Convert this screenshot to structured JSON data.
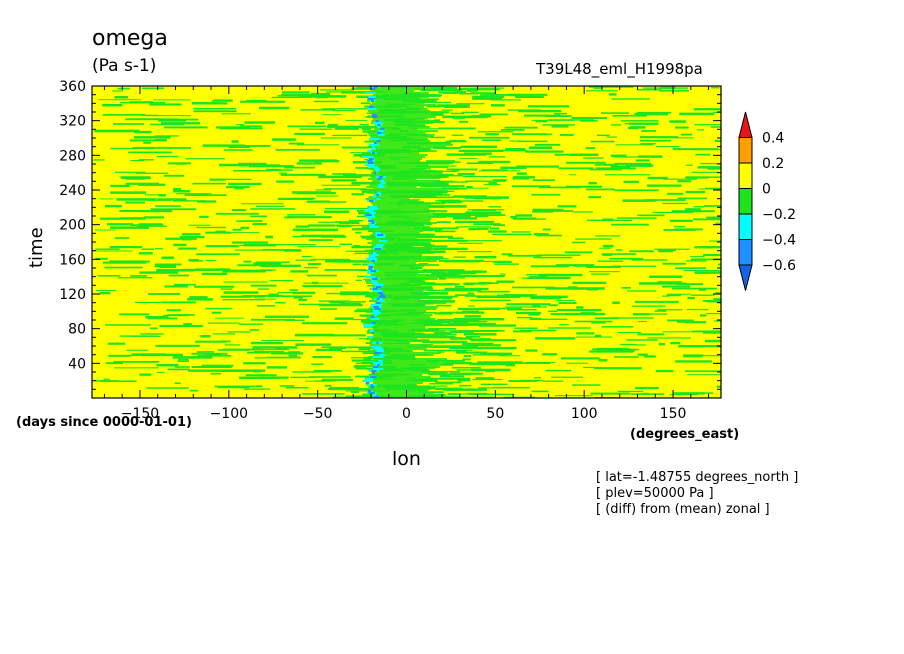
{
  "header": {
    "title": "omega",
    "units": "(Pa s-1)",
    "run_label": "T39L48_eml_H1998pa"
  },
  "notes": {
    "x_units": "(degrees_east)",
    "y_units": "(days since 0000-01-01)",
    "lines": [
      "[ lat=-1.48755 degrees_north ]",
      "[ plev=50000 Pa ]",
      "[ (diff) from (mean) zonal ]"
    ]
  },
  "chart_data": {
    "type": "heatmap",
    "title": "omega",
    "units": "(Pa s-1)",
    "xlabel": "lon",
    "ylabel": "time",
    "xlim": [
      -177,
      177
    ],
    "ylim": [
      0,
      360
    ],
    "x_ticks": [
      -150,
      -100,
      -50,
      0,
      50,
      100,
      150
    ],
    "y_ticks": [
      40,
      80,
      120,
      160,
      200,
      240,
      280,
      320,
      360
    ],
    "x_tick_labels": [
      "−150",
      "−100",
      "−50",
      "0",
      "50",
      "100",
      "150"
    ],
    "y_tick_labels": [
      "40",
      "80",
      "120",
      "160",
      "200",
      "240",
      "280",
      "320",
      "360"
    ],
    "colorbar": {
      "labels": [
        "0.4",
        "0.2",
        "0",
        "−0.2",
        "−0.4",
        "−0.6"
      ],
      "levels": [
        0.4,
        0.2,
        0,
        -0.2,
        -0.4,
        -0.6
      ],
      "colors": [
        "#e8141c",
        "#ff9f00",
        "#ffff00",
        "#1ee41e",
        "#00ffff",
        "#1e90ff",
        "#1464e6"
      ]
    },
    "colors": {
      "dominant": "#ffff00",
      "secondary": "#1ee41e",
      "band": "#00ffff",
      "band_core": "#1e90ff"
    },
    "features": {
      "negative_band_lon_range": [
        -25,
        -10
      ],
      "green_region_lon_range": [
        -20,
        20
      ]
    }
  }
}
